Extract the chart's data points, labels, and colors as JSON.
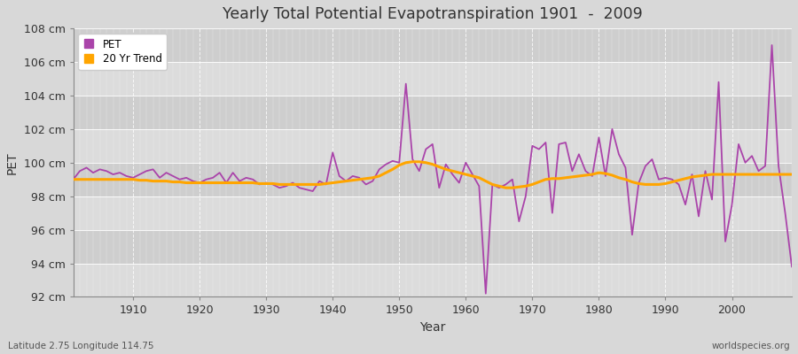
{
  "title": "Yearly Total Potential Evapotranspiration 1901  -  2009",
  "xlabel": "Year",
  "ylabel": "PET",
  "bottom_left_label": "Latitude 2.75 Longitude 114.75",
  "bottom_right_label": "worldspecies.org",
  "pet_color": "#AA44AA",
  "trend_color": "#FFA500",
  "bg_light": "#DCDCDC",
  "bg_dark": "#C8C8C8",
  "grid_color": "#FFFFFF",
  "ylim": [
    92,
    108
  ],
  "yticks": [
    92,
    94,
    96,
    98,
    100,
    102,
    104,
    106,
    108
  ],
  "ytick_labels": [
    "92 cm",
    "94 cm",
    "96 cm",
    "98 cm",
    "100 cm",
    "102 cm",
    "104 cm",
    "106 cm",
    "108 cm"
  ],
  "xlim": [
    1901,
    2009
  ],
  "xticks": [
    1910,
    1920,
    1930,
    1940,
    1950,
    1960,
    1970,
    1980,
    1990,
    2000
  ],
  "years": [
    1901,
    1902,
    1903,
    1904,
    1905,
    1906,
    1907,
    1908,
    1909,
    1910,
    1911,
    1912,
    1913,
    1914,
    1915,
    1916,
    1917,
    1918,
    1919,
    1920,
    1921,
    1922,
    1923,
    1924,
    1925,
    1926,
    1927,
    1928,
    1929,
    1930,
    1931,
    1932,
    1933,
    1934,
    1935,
    1936,
    1937,
    1938,
    1939,
    1940,
    1941,
    1942,
    1943,
    1944,
    1945,
    1946,
    1947,
    1948,
    1949,
    1950,
    1951,
    1952,
    1953,
    1954,
    1955,
    1956,
    1957,
    1958,
    1959,
    1960,
    1961,
    1962,
    1963,
    1964,
    1965,
    1966,
    1967,
    1968,
    1969,
    1970,
    1971,
    1972,
    1973,
    1974,
    1975,
    1976,
    1977,
    1978,
    1979,
    1980,
    1981,
    1982,
    1983,
    1984,
    1985,
    1986,
    1987,
    1988,
    1989,
    1990,
    1991,
    1992,
    1993,
    1994,
    1995,
    1996,
    1997,
    1998,
    1999,
    2000,
    2001,
    2002,
    2003,
    2004,
    2005,
    2006,
    2007,
    2008,
    2009
  ],
  "pet_values": [
    99.0,
    99.5,
    99.7,
    99.4,
    99.6,
    99.5,
    99.3,
    99.4,
    99.2,
    99.1,
    99.3,
    99.5,
    99.6,
    99.1,
    99.4,
    99.2,
    99.0,
    99.1,
    98.9,
    98.8,
    99.0,
    99.1,
    99.4,
    98.8,
    99.4,
    98.9,
    99.1,
    99.0,
    98.7,
    98.8,
    98.7,
    98.5,
    98.6,
    98.8,
    98.5,
    98.4,
    98.3,
    98.9,
    98.7,
    100.6,
    99.2,
    98.9,
    99.2,
    99.1,
    98.7,
    98.9,
    99.6,
    99.9,
    100.1,
    100.0,
    104.7,
    100.2,
    99.5,
    100.8,
    101.1,
    98.5,
    99.9,
    99.3,
    98.8,
    100.0,
    99.3,
    98.6,
    92.2,
    98.7,
    98.5,
    98.7,
    99.0,
    96.5,
    98.0,
    101.0,
    100.8,
    101.2,
    97.0,
    101.1,
    101.2,
    99.5,
    100.5,
    99.5,
    99.2,
    101.5,
    99.2,
    102.0,
    100.5,
    99.7,
    95.7,
    98.8,
    99.8,
    100.2,
    99.0,
    99.1,
    99.0,
    98.7,
    97.5,
    99.3,
    96.8,
    99.5,
    97.8,
    104.8,
    95.3,
    97.5,
    101.1,
    100.0,
    100.4,
    99.5,
    99.8,
    107.0,
    99.8,
    97.0,
    93.8
  ],
  "trend_values": [
    99.0,
    99.0,
    99.0,
    99.0,
    99.0,
    99.0,
    99.0,
    99.0,
    99.0,
    99.0,
    98.95,
    98.95,
    98.9,
    98.9,
    98.9,
    98.85,
    98.85,
    98.8,
    98.8,
    98.8,
    98.8,
    98.8,
    98.8,
    98.8,
    98.8,
    98.8,
    98.8,
    98.8,
    98.75,
    98.75,
    98.75,
    98.7,
    98.7,
    98.7,
    98.7,
    98.7,
    98.7,
    98.7,
    98.75,
    98.8,
    98.85,
    98.9,
    98.95,
    99.0,
    99.05,
    99.1,
    99.2,
    99.4,
    99.6,
    99.85,
    100.0,
    100.05,
    100.05,
    100.0,
    99.9,
    99.75,
    99.6,
    99.5,
    99.4,
    99.3,
    99.2,
    99.1,
    98.9,
    98.7,
    98.6,
    98.5,
    98.5,
    98.55,
    98.6,
    98.7,
    98.85,
    99.0,
    99.05,
    99.05,
    99.1,
    99.15,
    99.2,
    99.25,
    99.3,
    99.4,
    99.35,
    99.25,
    99.1,
    99.0,
    98.85,
    98.75,
    98.7,
    98.7,
    98.7,
    98.75,
    98.85,
    98.95,
    99.05,
    99.15,
    99.2,
    99.25,
    99.3,
    99.3,
    99.3,
    99.3,
    99.3,
    99.3,
    99.3,
    99.3,
    99.3,
    99.3,
    99.3,
    99.3,
    99.3
  ]
}
